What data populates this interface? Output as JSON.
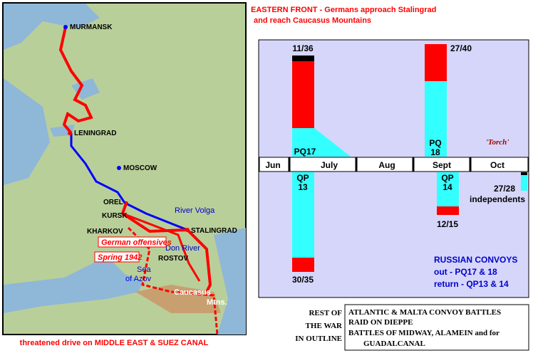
{
  "title": {
    "line1": "EASTERN FRONT - Germans approach Stalingrad",
    "line2": "and reach Caucasus Mountains"
  },
  "map": {
    "cities": [
      "MURMANSK",
      "LENINGRAD",
      "MOSCOW",
      "OREL",
      "KURSK",
      "KHARKOV",
      "STALINGRAD",
      "ROSTOV"
    ],
    "features": [
      "River Volga",
      "Don River",
      "Sea",
      "of Azov",
      "Caucasus",
      "Mtns."
    ],
    "offensive_notes": [
      "German offensives",
      "Spring 1942"
    ],
    "caption": "threatened drive on MIDDLE EAST & SUEZ CANAL"
  },
  "convoys": {
    "months": [
      "Jun",
      "July",
      "Aug",
      "Sept",
      "Oct"
    ],
    "outbound": [
      {
        "name": "PQ17",
        "loss": "11/36"
      },
      {
        "name_lines": [
          "PQ",
          "18"
        ],
        "loss": "27/40"
      }
    ],
    "return": [
      {
        "name_lines": [
          "QP",
          "13"
        ],
        "loss": "30/35"
      },
      {
        "name_lines": [
          "QP",
          "14"
        ],
        "loss": "12/15"
      },
      {
        "loss": "27/28",
        "name": "independents"
      }
    ],
    "torch": "'Torch'",
    "legend": [
      "RUSSIAN CONVOYS",
      "out - PQ17 & 18",
      "return - QP13 & 14"
    ]
  },
  "outline": {
    "label": [
      "REST OF",
      "THE WAR",
      "IN OUTLINE"
    ],
    "items": [
      "ATLANTIC & MALTA CONVOY BATTLES",
      "RAID ON DIEPPE",
      "BATTLES OF MIDWAY, ALAMEIN and for",
      "GUADALCANAL"
    ]
  }
}
